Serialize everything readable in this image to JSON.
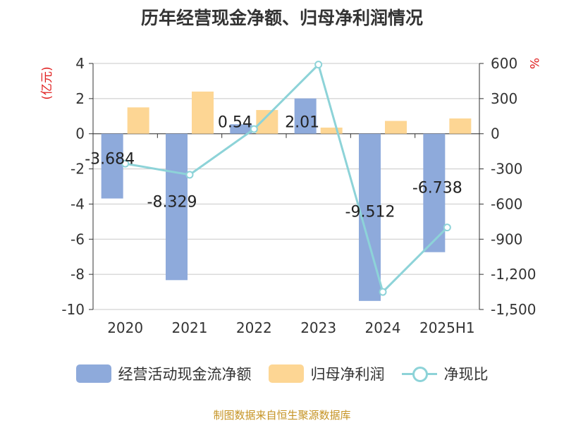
{
  "title": "历年经营现金净额、归母净利润情况",
  "source": "制图数据来自恒生聚源数据库",
  "chart_data": {
    "type": "bar",
    "categories": [
      "2020",
      "2021",
      "2022",
      "2023",
      "2024",
      "2025H1"
    ],
    "left_axis": {
      "label": "(亿元)",
      "ylim": [
        -10,
        4
      ],
      "ticks": [
        "4",
        "2",
        "0",
        "-2",
        "-4",
        "-6",
        "-8",
        "-10"
      ]
    },
    "right_axis": {
      "label": "%",
      "ylim": [
        -1500,
        600
      ],
      "ticks": [
        "600",
        "300",
        "0",
        "-300",
        "-600",
        "-900",
        "-1,200",
        "-1,500"
      ]
    },
    "series": [
      {
        "name": "经营活动现金流净额",
        "type": "bar",
        "axis": "left",
        "color": "#8eaadb",
        "values": [
          -3.684,
          -8.329,
          0.54,
          2.01,
          -9.512,
          -6.738
        ],
        "labels": [
          "-3.684",
          "-8.329",
          "0.54",
          "2.01",
          "-9.512",
          "-6.738"
        ]
      },
      {
        "name": "归母净利润",
        "type": "bar",
        "axis": "left",
        "color": "#fdd694",
        "values": [
          1.5,
          2.4,
          1.35,
          0.35,
          0.73,
          0.87
        ]
      },
      {
        "name": "净现比",
        "type": "line",
        "axis": "right",
        "color": "#8dd3d8",
        "values": [
          -255,
          -350,
          40,
          590,
          -1350,
          -800
        ]
      }
    ],
    "grid": true,
    "legend_position": "bottom"
  },
  "icons": {
    "legend_line_marker": "circle-marker-icon"
  }
}
